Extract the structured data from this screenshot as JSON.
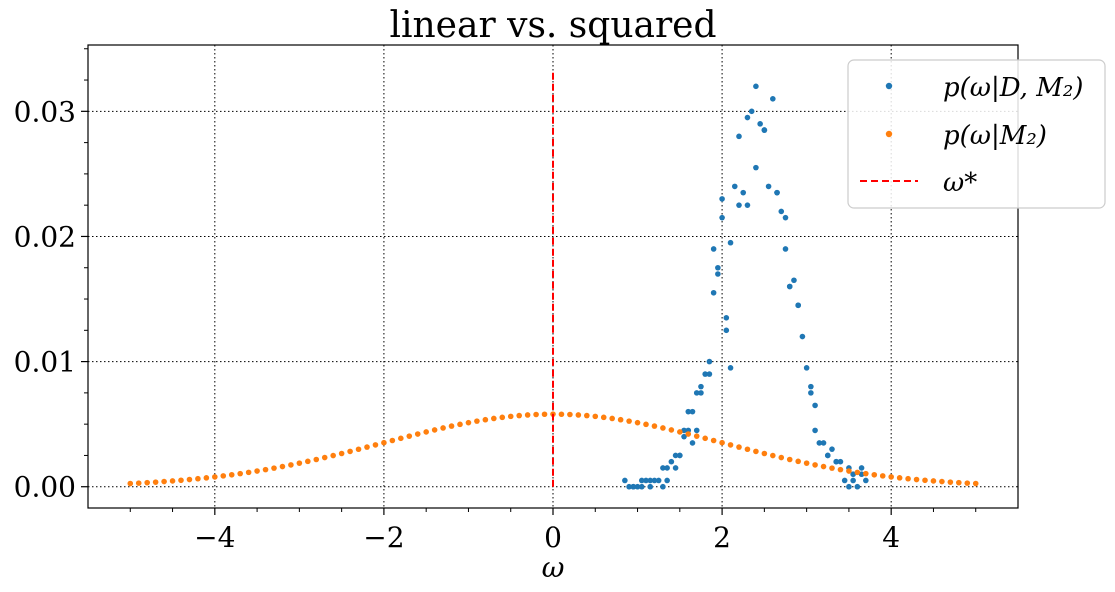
{
  "chart_data": {
    "type": "scatter",
    "title": "linear vs. squared",
    "xlabel": "ω",
    "ylabel": "",
    "xlim": [
      -5.5,
      5.5
    ],
    "ylim": [
      -0.0017,
      0.0353
    ],
    "x_ticks": [
      -4,
      -2,
      0,
      2,
      4
    ],
    "x_tick_labels": [
      "−4",
      "−2",
      "0",
      "2",
      "4"
    ],
    "y_ticks": [
      0,
      0.01,
      0.02,
      0.03
    ],
    "y_tick_labels": [
      "0.00",
      "0.01",
      "0.02",
      "0.03"
    ],
    "grid": true,
    "legend_position": "top-right",
    "series": [
      {
        "name": "p(ω|D, M₂)",
        "color": "#1f77b4",
        "kind": "points",
        "points": [
          [
            0.85,
            0.0005
          ],
          [
            0.9,
            0
          ],
          [
            0.95,
            0
          ],
          [
            1.0,
            0
          ],
          [
            1.05,
            0
          ],
          [
            1.1,
            0.0005
          ],
          [
            1.15,
            0
          ],
          [
            1.2,
            0.0005
          ],
          [
            1.25,
            0.0005
          ],
          [
            1.3,
            0
          ],
          [
            1.3,
            0.0015
          ],
          [
            1.35,
            0.0015
          ],
          [
            1.4,
            0.002
          ],
          [
            1.45,
            0.0025
          ],
          [
            1.5,
            0.0025
          ],
          [
            1.55,
            0.004
          ],
          [
            1.6,
            0.006
          ],
          [
            1.65,
            0.006
          ],
          [
            1.7,
            0.0075
          ],
          [
            1.75,
            0.008
          ],
          [
            1.8,
            0.009
          ],
          [
            1.85,
            0.01
          ],
          [
            1.9,
            0.019
          ],
          [
            1.95,
            0.017
          ],
          [
            2.0,
            0.023
          ],
          [
            2.05,
            0.0135
          ],
          [
            2.1,
            0.0195
          ],
          [
            2.15,
            0.024
          ],
          [
            2.2,
            0.0225
          ],
          [
            2.25,
            0.0235
          ],
          [
            2.3,
            0.0295
          ],
          [
            2.35,
            0.03
          ],
          [
            2.4,
            0.032
          ],
          [
            2.45,
            0.029
          ],
          [
            2.5,
            0.0285
          ],
          [
            2.55,
            0.024
          ],
          [
            2.6,
            0.031
          ],
          [
            2.65,
            0.0235
          ],
          [
            2.7,
            0.022
          ],
          [
            2.75,
            0.019
          ],
          [
            2.8,
            0.016
          ],
          [
            2.85,
            0.0165
          ],
          [
            2.9,
            0.0145
          ],
          [
            2.95,
            0.012
          ],
          [
            3.0,
            0.0095
          ],
          [
            3.05,
            0.008
          ],
          [
            3.1,
            0.0065
          ],
          [
            3.15,
            0.0035
          ],
          [
            3.2,
            0.0035
          ],
          [
            3.25,
            0.0025
          ],
          [
            3.3,
            0.003
          ],
          [
            3.35,
            0.002
          ],
          [
            3.4,
            0.002
          ],
          [
            3.45,
            0.0005
          ],
          [
            3.5,
            0
          ],
          [
            3.55,
            0.001
          ],
          [
            3.6,
            0
          ],
          [
            3.65,
            0.001
          ],
          [
            3.7,
            0.0005
          ],
          [
            1.95,
            0.0175
          ],
          [
            2.0,
            0.0215
          ],
          [
            2.05,
            0.0125
          ],
          [
            2.1,
            0.0095
          ],
          [
            2.2,
            0.028
          ],
          [
            2.4,
            0.0255
          ],
          [
            2.5,
            0.0285
          ],
          [
            2.75,
            0.0215
          ],
          [
            2.8,
            0.016
          ],
          [
            2.9,
            0.0145
          ],
          [
            3.1,
            0.0045
          ],
          [
            3.25,
            0.0025
          ],
          [
            3.5,
            0.0015
          ],
          [
            3.65,
            0.0015
          ],
          [
            1.9,
            0.0155
          ],
          [
            1.85,
            0.009
          ],
          [
            1.7,
            0.0045
          ],
          [
            1.6,
            0.0045
          ],
          [
            1.55,
            0.0045
          ],
          [
            1.45,
            0.0015
          ],
          [
            1.35,
            0.0005
          ],
          [
            1.15,
            0.0005
          ],
          [
            1.05,
            0.0005
          ],
          [
            0.95,
            0
          ],
          [
            2.3,
            0.0225
          ],
          [
            2.65,
            0.0235
          ],
          [
            3.05,
            0.0075
          ],
          [
            3.35,
            0.002
          ],
          [
            3.55,
            0.0005
          ],
          [
            1.75,
            0.0075
          ],
          [
            1.65,
            0.0035
          ],
          [
            1.5,
            0.0025
          ]
        ]
      },
      {
        "name": "p(ω|M₂)",
        "color": "#ff7f0e",
        "kind": "gaussian",
        "x_start": -5,
        "x_end": 5,
        "x_step": 0.1,
        "mean": 0,
        "std": 2,
        "peak": 0.0058
      },
      {
        "name": "ω*",
        "color": "#ff0000",
        "kind": "vline",
        "x": 0,
        "y_range": [
          0,
          0.0333
        ]
      }
    ]
  }
}
